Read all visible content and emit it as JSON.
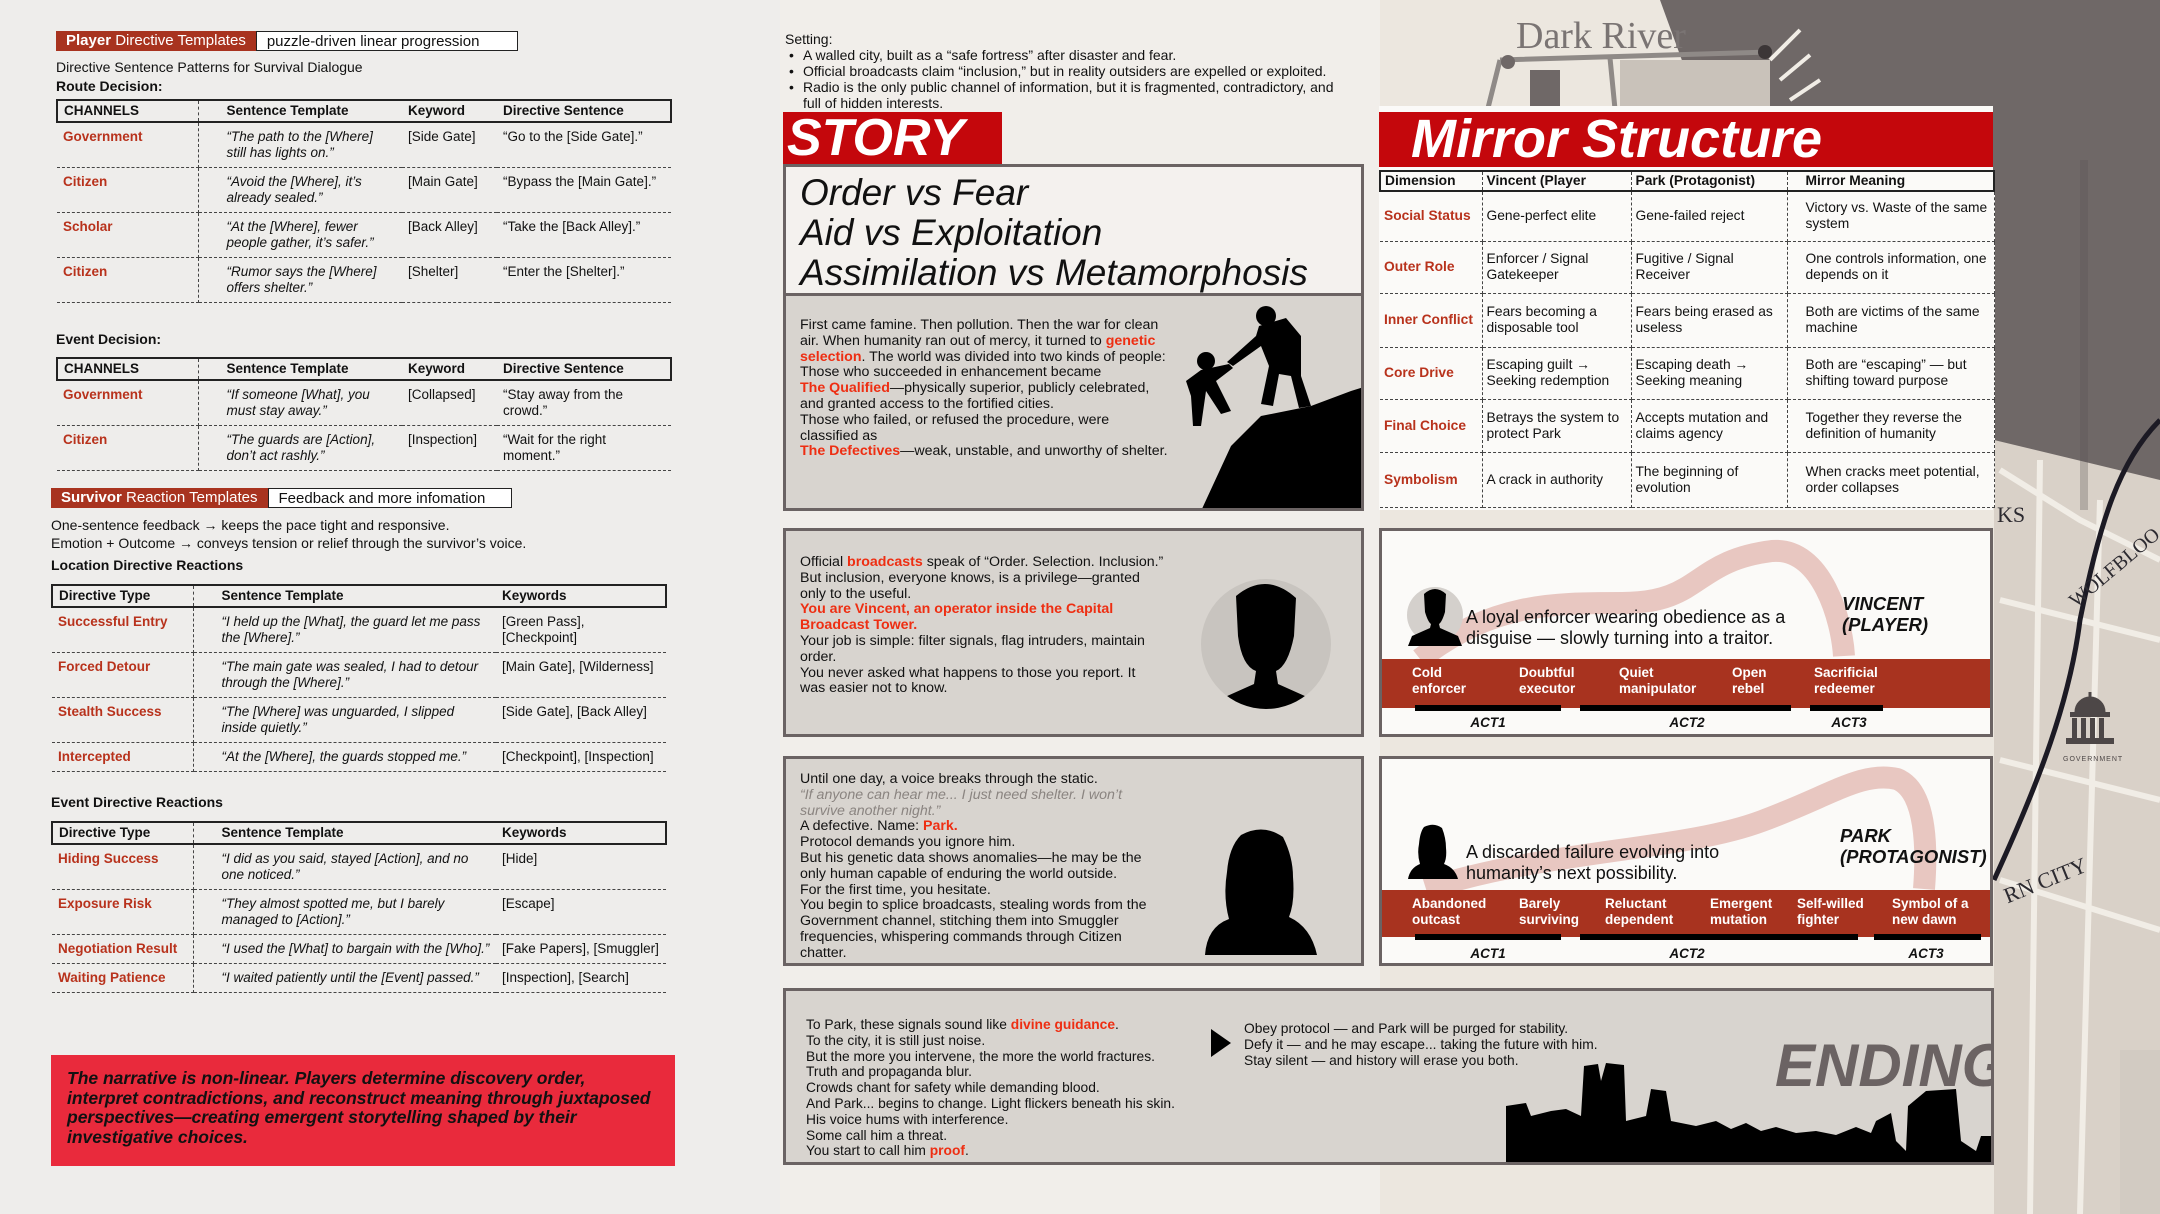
{
  "player": {
    "header_bold": "Player",
    "header_rest": " Directive Templates",
    "header_box": "puzzle-driven linear progression",
    "subtitle": "Directive Sentence Patterns for Survival Dialogue",
    "route_label": "Route Decision:",
    "route_table": {
      "headers": [
        "CHANNELS",
        "Sentence Template",
        "Keyword",
        "Directive Sentence"
      ],
      "rows": [
        [
          "Government",
          "“The path to the [Where] still has lights on.”",
          "[Side Gate]",
          "“Go to the [Side Gate].”"
        ],
        [
          "Citizen",
          "“Avoid the [Where], it’s already sealed.”",
          "[Main Gate]",
          "“Bypass the [Main Gate].”"
        ],
        [
          "Scholar",
          "“At the [Where], fewer people gather, it’s safer.”",
          "[Back Alley]",
          "“Take the [Back Alley].”"
        ],
        [
          "Citizen",
          "“Rumor says the [Where] offers shelter.”",
          "[Shelter]",
          "“Enter the [Shelter].”"
        ]
      ]
    },
    "event_label": "Event Decision:",
    "event_table": {
      "headers": [
        "CHANNELS",
        "Sentence Template",
        "Keyword",
        "Directive Sentence"
      ],
      "rows": [
        [
          "Government",
          "“If someone [What], you must stay away.”",
          "[Collapsed]",
          "“Stay away from the crowd.”"
        ],
        [
          "Citizen",
          "“The guards are [Action], don’t act rashly.”",
          "[Inspection]",
          "“Wait for the right moment.”"
        ]
      ]
    }
  },
  "survivor": {
    "header_bold": "Survivor",
    "header_rest": " Reaction Templates",
    "header_box": "Feedback and more infomation",
    "line1": "One-sentence feedback → keeps the pace tight and responsive.",
    "line2": "Emotion + Outcome → conveys tension or relief through the survivor’s voice.",
    "location_label": "Location Directive Reactions",
    "location_table": {
      "headers": [
        "Directive Type",
        "Sentence Template",
        "Keywords"
      ],
      "rows": [
        [
          "Successful Entry",
          "“I held up the [What], the guard let me pass the [Where].”",
          "[Green Pass], [Checkpoint]"
        ],
        [
          "Forced Detour",
          "“The main gate was sealed, I had to detour through the [Where].”",
          "[Main Gate], [Wilderness]"
        ],
        [
          "Stealth Success",
          "“The [Where] was unguarded, I slipped inside quietly.”",
          "[Side Gate], [Back Alley]"
        ],
        [
          "Intercepted",
          "“At the [Where], the guards stopped me.”",
          "[Checkpoint], [Inspection]"
        ]
      ]
    },
    "event_label": "Event Directive Reactions",
    "event_table": {
      "headers": [
        "Directive Type",
        "Sentence Template",
        "Keywords"
      ],
      "rows": [
        [
          "Hiding Success",
          "“I did as you said, stayed [Action], and no one noticed.”",
          "[Hide]"
        ],
        [
          "Exposure Risk",
          "“They almost spotted me, but I barely managed to [Action].”",
          "[Escape]"
        ],
        [
          "Negotiation Result",
          "“I used the [What] to bargain with the [Who].”",
          "[Fake Papers], [Smuggler]"
        ],
        [
          "Waiting Patience",
          "“I waited patiently until the [Event] passed.”",
          "[Inspection], [Search]"
        ]
      ]
    }
  },
  "note": "The narrative is non-linear. Players determine discovery order, interpret contradictions, and reconstruct meaning through juxtaposed perspectives—creating emergent storytelling shaped by their investigative choices.",
  "setting": {
    "label": "Setting:",
    "bullets": [
      "A walled city, built as a “safe fortress” after disaster and fear.",
      "Official broadcasts claim “inclusion,” but in reality outsiders are expelled or exploited.",
      "Radio is the only public channel of information, but it is fragmented, contradictory, and",
      "full of hidden interests."
    ]
  },
  "story": {
    "title": "STORY",
    "themes": [
      "Order vs Fear",
      "Aid vs Exploitation",
      "Assimilation vs Metamorphosis"
    ],
    "intro": [
      [
        {
          "t": "First came famine. Then pollution. Then the war for clean"
        }
      ],
      [
        {
          "t": "air. When humanity ran out of mercy, it turned to "
        },
        {
          "t": "genetic",
          "s": "red"
        }
      ],
      [
        {
          "t": "selection",
          "s": "red"
        },
        {
          "t": ". The world was divided into two kinds of people:"
        }
      ],
      [
        {
          "t": " "
        }
      ],
      [
        {
          "t": "Those who succeeded in enhancement became"
        }
      ],
      [
        {
          "t": "The Qualified",
          "s": "red"
        },
        {
          "t": "—physically superior, publicly celebrated,"
        }
      ],
      [
        {
          "t": "and granted access to the fortified cities."
        }
      ],
      [
        {
          "t": " "
        }
      ],
      [
        {
          "t": "Those who failed, or refused the procedure, were"
        }
      ],
      [
        {
          "t": "classified as"
        }
      ],
      [
        {
          "t": "The Defectives",
          "s": "red"
        },
        {
          "t": "—weak, unstable, and unworthy of shelter."
        }
      ]
    ],
    "vincent": [
      [
        {
          "t": "Official "
        },
        {
          "t": "broadcasts",
          "s": "red"
        },
        {
          "t": " speak of “Order. Selection. Inclusion.”"
        }
      ],
      [
        {
          "t": "But inclusion, everyone knows, is a privilege—granted"
        }
      ],
      [
        {
          "t": "only to the useful."
        }
      ],
      [
        {
          "t": " "
        }
      ],
      [
        {
          "t": "You are Vincent, an operator inside the Capital",
          "s": "red"
        }
      ],
      [
        {
          "t": "Broadcast Tower.",
          "s": "red"
        }
      ],
      [
        {
          "t": " "
        }
      ],
      [
        {
          "t": "Your job is simple: filter signals, flag intruders, maintain"
        }
      ],
      [
        {
          "t": "order."
        }
      ],
      [
        {
          "t": "You never asked what happens to those you report. It"
        }
      ],
      [
        {
          "t": "was easier not to know."
        }
      ]
    ],
    "park": [
      [
        {
          "t": "Until one day, a voice breaks through the static."
        }
      ],
      [
        {
          "t": "“If anyone can hear me... I just need shelter. I won’t",
          "s": "gray"
        }
      ],
      [
        {
          "t": "survive another night.”",
          "s": "gray"
        }
      ],
      [
        {
          "t": "A defective. Name: "
        },
        {
          "t": "Park.",
          "s": "red"
        }
      ],
      [
        {
          "t": "Protocol demands you ignore him."
        }
      ],
      [
        {
          "t": "But his genetic data shows anomalies—he may be the"
        }
      ],
      [
        {
          "t": "only human capable of enduring the world outside."
        }
      ],
      [
        {
          "t": "For the first time, you hesitate."
        }
      ],
      [
        {
          "t": "You begin to splice broadcasts, stealing words from the"
        }
      ],
      [
        {
          "t": "Government channel, stitching them into Smuggler"
        }
      ],
      [
        {
          "t": "frequencies, whispering commands through Citizen"
        }
      ],
      [
        {
          "t": "chatter."
        }
      ]
    ]
  },
  "ending": {
    "title": "ENDING",
    "left": [
      [
        {
          "t": "To Park, these signals sound like "
        },
        {
          "t": "divine guidance",
          "s": "red"
        },
        {
          "t": "."
        }
      ],
      [
        {
          "t": "To the city, it is still just noise."
        }
      ],
      [
        {
          "t": "But the more you intervene, the more the world fractures."
        }
      ],
      [
        {
          "t": "Truth and propaganda blur."
        }
      ],
      [
        {
          "t": "Crowds chant for safety while demanding blood."
        }
      ],
      [
        {
          "t": "And Park... begins to change. Light flickers beneath his skin."
        }
      ],
      [
        {
          "t": "His voice hums with interference."
        }
      ],
      [
        {
          "t": "Some call him a threat."
        }
      ],
      [
        {
          "t": "You start to call him "
        },
        {
          "t": "proof",
          "s": "red"
        },
        {
          "t": "."
        }
      ]
    ],
    "right": [
      [
        {
          "t": "Obey protocol — and Park will be purged for stability."
        }
      ],
      [
        {
          "t": "Defy it — and he may escape... taking the future with him."
        }
      ],
      [
        {
          "t": "Stay silent — and history will erase you both."
        }
      ]
    ]
  },
  "mirror": {
    "title": "Mirror Structure",
    "headers": [
      "Dimension",
      "Vincent (Player",
      "Park (Protagonist)",
      "Mirror Meaning"
    ],
    "rows": [
      [
        "Social Status",
        "Gene-perfect elite",
        "Gene-failed reject",
        "Victory vs. Waste of the same system"
      ],
      [
        "Outer Role",
        "Enforcer / Signal Gatekeeper",
        "Fugitive / Signal Receiver",
        "One controls information, one depends on it"
      ],
      [
        "Inner Conflict",
        "Fears becoming a disposable tool",
        "Fears being erased as useless",
        "Both are victims of the same machine"
      ],
      [
        "Core Drive",
        "Escaping guilt → Seeking redemption",
        "Escaping death → Seeking meaning",
        "Both are “escaping” — but shifting toward purpose"
      ],
      [
        "Final Choice",
        "Betrays the system to protect Park",
        "Accepts mutation and claims agency",
        "Together they reverse the definition of humanity"
      ],
      [
        "Symbolism",
        "A crack in authority",
        "The beginning of evolution",
        "When cracks meet potential, order collapses"
      ]
    ]
  },
  "arcs": {
    "vincent": {
      "name_line1": "VINCENT",
      "name_line2": "(PLAYER)",
      "desc_line1": "A loyal enforcer wearing obedience as a",
      "desc_line2": "disguise — slowly turning into a traitor.",
      "stages": [
        [
          "Cold",
          "enforcer"
        ],
        [
          "Doubtful",
          "executor"
        ],
        [
          "Quiet",
          "manipulator"
        ],
        [
          "Open",
          "rebel"
        ],
        [
          "Sacrificial",
          "redeemer"
        ]
      ],
      "acts": [
        "ACT1",
        "ACT2",
        "ACT3"
      ]
    },
    "park": {
      "name_line1": "PARK",
      "name_line2": "(PROTAGONIST)",
      "desc_line1": "A discarded failure evolving into",
      "desc_line2": "humanity’s next possibility.",
      "stages": [
        [
          "Abandoned",
          "outcast"
        ],
        [
          "Barely",
          "surviving"
        ],
        [
          "Reluctant",
          "dependent"
        ],
        [
          "Emergent",
          "mutation"
        ],
        [
          "Self-willed",
          "fighter"
        ],
        [
          "Symbol of a",
          "new dawn"
        ]
      ],
      "acts": [
        "ACT1",
        "ACT2",
        "ACT3"
      ]
    }
  },
  "map": {
    "label_river": "Dark River",
    "label_ks": "KS",
    "label_wolf": "WOLFBLOO",
    "label_gov": "GOVERNMENT",
    "label_city": "RN CITY"
  },
  "colors": {
    "accent_red": "#c4070c",
    "rust": "#a8331f",
    "highlight": "#ee2e12",
    "note_bg": "#e92a3c",
    "panel_gray": "#d8d4cf"
  },
  "icons": {
    "vincent_avatar": "male-silhouette-icon",
    "park_avatar": "female-silhouette-icon",
    "climbers": "climbers-silhouette",
    "skyline": "city-skyline-silhouette",
    "arrow": "play-arrow-icon",
    "government": "capitol-building-icon"
  }
}
